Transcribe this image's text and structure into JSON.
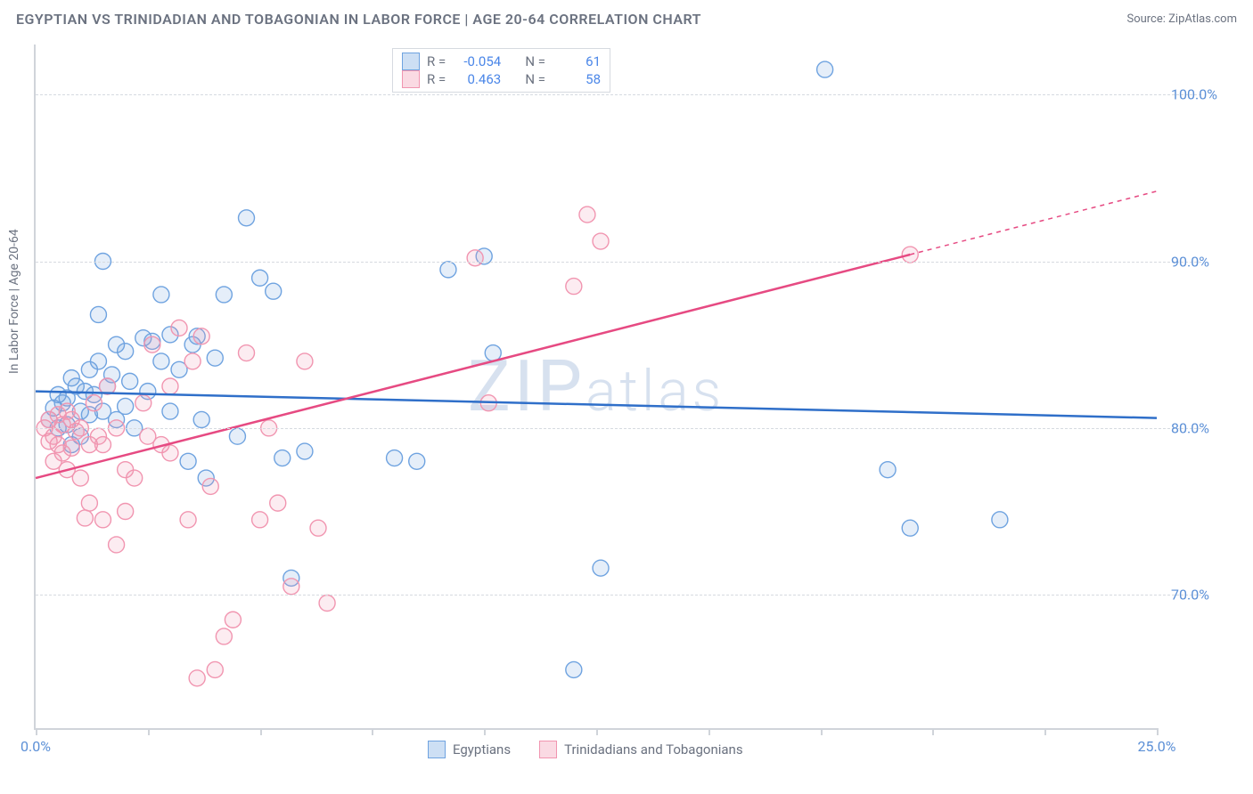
{
  "title": "EGYPTIAN VS TRINIDADIAN AND TOBAGONIAN IN LABOR FORCE | AGE 20-64 CORRELATION CHART",
  "source": "Source: ZipAtlas.com",
  "ylabel": "In Labor Force | Age 20-64",
  "watermark": "ZIPatlas",
  "chart": {
    "type": "scatter",
    "background_color": "#ffffff",
    "grid_color": "#d6dae0",
    "axis_color": "#d0d4da",
    "xlim": [
      0,
      25
    ],
    "ylim": [
      62,
      103
    ],
    "x_ticks": [
      0,
      25
    ],
    "x_tick_labels": [
      "0.0%",
      "25.0%"
    ],
    "x_minor_ticks": [
      2.5,
      5,
      7.5,
      10,
      12.5,
      15,
      17.5,
      20,
      22.5
    ],
    "y_ticks": [
      70,
      80,
      90,
      100
    ],
    "y_tick_labels": [
      "70.0%",
      "80.0%",
      "90.0%",
      "100.0%"
    ],
    "marker_radius": 9,
    "marker_stroke_width": 1.4,
    "marker_fill_opacity": 0.18,
    "line_width": 2.5,
    "series": [
      {
        "key": "egyptians",
        "label": "Egyptians",
        "color": "#6fa3e0",
        "line_color": "#2f6fc9",
        "R": "-0.054",
        "N": "61",
        "trend": {
          "x0": 0,
          "y0": 82.2,
          "x1": 25,
          "y1": 80.6
        },
        "points": [
          [
            0.3,
            80.5
          ],
          [
            0.4,
            81.2
          ],
          [
            0.5,
            82.0
          ],
          [
            0.5,
            80.0
          ],
          [
            0.6,
            81.5
          ],
          [
            0.7,
            81.8
          ],
          [
            0.7,
            80.2
          ],
          [
            0.8,
            83.0
          ],
          [
            0.8,
            79.0
          ],
          [
            0.9,
            82.5
          ],
          [
            1.0,
            81.0
          ],
          [
            1.0,
            79.5
          ],
          [
            1.1,
            82.2
          ],
          [
            1.2,
            83.5
          ],
          [
            1.2,
            80.8
          ],
          [
            1.3,
            82.0
          ],
          [
            1.4,
            84.0
          ],
          [
            1.4,
            86.8
          ],
          [
            1.5,
            81.0
          ],
          [
            1.5,
            90.0
          ],
          [
            1.6,
            82.5
          ],
          [
            1.7,
            83.2
          ],
          [
            1.8,
            80.5
          ],
          [
            1.8,
            85.0
          ],
          [
            2.0,
            84.6
          ],
          [
            2.0,
            81.3
          ],
          [
            2.1,
            82.8
          ],
          [
            2.2,
            80.0
          ],
          [
            2.4,
            85.4
          ],
          [
            2.5,
            82.2
          ],
          [
            2.6,
            85.2
          ],
          [
            2.8,
            84.0
          ],
          [
            2.8,
            88.0
          ],
          [
            3.0,
            85.6
          ],
          [
            3.0,
            81.0
          ],
          [
            3.2,
            83.5
          ],
          [
            3.4,
            78.0
          ],
          [
            3.5,
            85.0
          ],
          [
            3.6,
            85.5
          ],
          [
            3.7,
            80.5
          ],
          [
            3.8,
            77.0
          ],
          [
            4.0,
            84.2
          ],
          [
            4.2,
            88.0
          ],
          [
            4.5,
            79.5
          ],
          [
            4.7,
            92.6
          ],
          [
            5.0,
            89.0
          ],
          [
            5.3,
            88.2
          ],
          [
            5.5,
            78.2
          ],
          [
            5.7,
            71.0
          ],
          [
            6.0,
            78.6
          ],
          [
            8.0,
            78.2
          ],
          [
            8.5,
            78.0
          ],
          [
            9.2,
            89.5
          ],
          [
            10.2,
            84.5
          ],
          [
            12.0,
            65.5
          ],
          [
            12.6,
            71.6
          ],
          [
            17.6,
            101.5
          ],
          [
            19.0,
            77.5
          ],
          [
            19.5,
            74.0
          ],
          [
            21.5,
            74.5
          ],
          [
            10.0,
            90.3
          ]
        ]
      },
      {
        "key": "trinidadians",
        "label": "Trinidadians and Tobagonians",
        "color": "#f195b0",
        "line_color": "#e64a82",
        "R": "0.463",
        "N": "58",
        "trend": {
          "x0": 0,
          "y0": 77.0,
          "x1": 19.5,
          "y1": 90.4,
          "dash_to_x": 25,
          "dash_to_y": 94.2
        },
        "points": [
          [
            0.2,
            80.0
          ],
          [
            0.3,
            79.2
          ],
          [
            0.3,
            80.5
          ],
          [
            0.4,
            79.5
          ],
          [
            0.4,
            78.0
          ],
          [
            0.5,
            80.8
          ],
          [
            0.5,
            79.0
          ],
          [
            0.6,
            80.2
          ],
          [
            0.6,
            78.5
          ],
          [
            0.7,
            81.0
          ],
          [
            0.7,
            77.5
          ],
          [
            0.8,
            80.5
          ],
          [
            0.8,
            78.8
          ],
          [
            0.9,
            79.8
          ],
          [
            1.0,
            77.0
          ],
          [
            1.0,
            80.0
          ],
          [
            1.1,
            74.6
          ],
          [
            1.2,
            79.0
          ],
          [
            1.2,
            75.5
          ],
          [
            1.3,
            81.5
          ],
          [
            1.4,
            79.5
          ],
          [
            1.5,
            79.0
          ],
          [
            1.5,
            74.5
          ],
          [
            1.6,
            82.5
          ],
          [
            1.8,
            80.0
          ],
          [
            1.8,
            73.0
          ],
          [
            2.0,
            77.5
          ],
          [
            2.0,
            75.0
          ],
          [
            2.2,
            77.0
          ],
          [
            2.4,
            81.5
          ],
          [
            2.5,
            79.5
          ],
          [
            2.6,
            85.0
          ],
          [
            2.8,
            79.0
          ],
          [
            3.0,
            82.5
          ],
          [
            3.0,
            78.5
          ],
          [
            3.2,
            86.0
          ],
          [
            3.4,
            74.5
          ],
          [
            3.5,
            84.0
          ],
          [
            3.6,
            65.0
          ],
          [
            3.7,
            85.5
          ],
          [
            3.9,
            76.5
          ],
          [
            4.0,
            65.5
          ],
          [
            4.2,
            67.5
          ],
          [
            4.4,
            68.5
          ],
          [
            4.7,
            84.5
          ],
          [
            5.0,
            74.5
          ],
          [
            5.4,
            75.5
          ],
          [
            5.7,
            70.5
          ],
          [
            6.0,
            84.0
          ],
          [
            6.3,
            74.0
          ],
          [
            6.5,
            69.5
          ],
          [
            9.8,
            90.2
          ],
          [
            10.1,
            81.5
          ],
          [
            12.0,
            88.5
          ],
          [
            12.3,
            92.8
          ],
          [
            12.6,
            91.2
          ],
          [
            19.5,
            90.4
          ],
          [
            5.2,
            80.0
          ]
        ]
      }
    ]
  },
  "legend_top": {
    "r_label": "R =",
    "n_label": "N ="
  }
}
